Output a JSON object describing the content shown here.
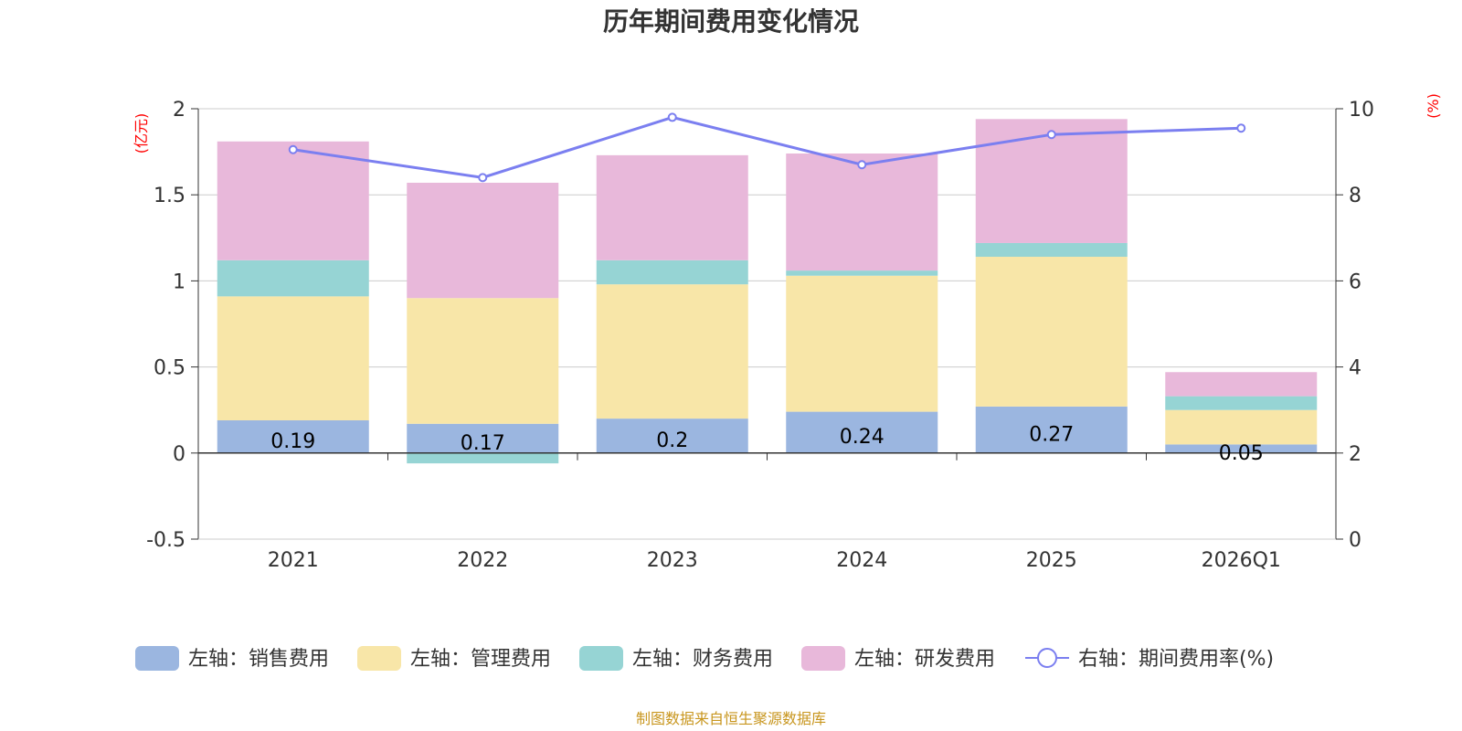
{
  "chart_data": {
    "type": "bar",
    "stacked": true,
    "title": "历年期间费用变化情况",
    "categories": [
      "2021",
      "2022",
      "2023",
      "2024",
      "2025",
      "2026Q1"
    ],
    "left_axis": {
      "unit_label": "(亿元)",
      "range": [
        -0.5,
        2
      ],
      "ticks": [
        "-0.5",
        "0",
        "0.5",
        "1",
        "1.5",
        "2"
      ]
    },
    "right_axis": {
      "unit_label": "(%)",
      "range": [
        0,
        10
      ],
      "ticks": [
        "0",
        "2",
        "4",
        "6",
        "8",
        "10"
      ]
    },
    "series": [
      {
        "name": "左轴：销售费用",
        "axis": "left",
        "color": "#9bb6e0",
        "values": [
          0.19,
          0.17,
          0.2,
          0.24,
          0.27,
          0.05
        ],
        "labels": [
          "0.19",
          "0.17",
          "0.2",
          "0.24",
          "0.27",
          "0.05"
        ]
      },
      {
        "name": "左轴：管理费用",
        "axis": "left",
        "color": "#f8e6a8",
        "values": [
          0.72,
          0.73,
          0.78,
          0.79,
          0.87,
          0.2
        ]
      },
      {
        "name": "左轴：财务费用",
        "axis": "left",
        "color": "#96d4d4",
        "values": [
          0.21,
          -0.06,
          0.14,
          0.03,
          0.08,
          0.08
        ]
      },
      {
        "name": "左轴：研发费用",
        "axis": "left",
        "color": "#e8b8da",
        "values": [
          0.69,
          0.67,
          0.61,
          0.68,
          0.72,
          0.14
        ]
      },
      {
        "name": "右轴：期间费用率(%)",
        "axis": "right",
        "type": "line",
        "color": "#7b7ff0",
        "values": [
          9.05,
          8.4,
          9.8,
          8.7,
          9.4,
          9.55
        ]
      }
    ],
    "source": "制图数据来自恒生聚源数据库"
  }
}
